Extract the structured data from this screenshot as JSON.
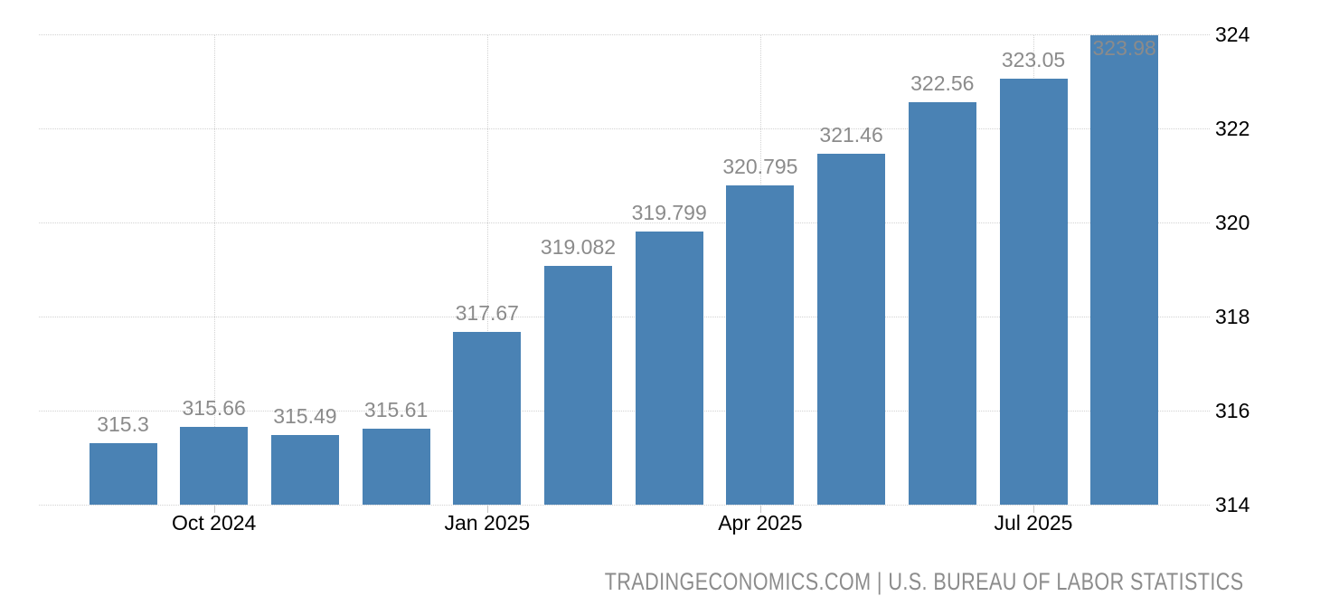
{
  "chart_data": {
    "type": "bar",
    "title": "",
    "xlabel": "",
    "ylabel": "",
    "values": [
      315.3,
      315.66,
      315.49,
      315.61,
      317.67,
      319.082,
      319.799,
      320.795,
      321.46,
      322.56,
      323.05,
      323.98
    ],
    "bar_labels": [
      "315.3",
      "315.66",
      "315.49",
      "315.61",
      "317.67",
      "319.082",
      "319.799",
      "320.795",
      "321.46",
      "322.56",
      "323.05",
      "323.98"
    ],
    "x_ticks": [
      {
        "label": "Oct 2024",
        "bar_index": 1
      },
      {
        "label": "Jan 2025",
        "bar_index": 4
      },
      {
        "label": "Apr 2025",
        "bar_index": 7
      },
      {
        "label": "Jul 2025",
        "bar_index": 10
      }
    ],
    "y_ticks": [
      "314",
      "316",
      "318",
      "320",
      "322",
      "324"
    ],
    "ylim": [
      314,
      324
    ],
    "y_axis_side": "right",
    "grid": "dotted",
    "legend": "none",
    "colors": {
      "bar": "#4a82b4",
      "value_label": "#8b8b8b",
      "axis_text": "#000000",
      "gridline": "#d2d2d2",
      "attribution_text": "#8c8c8c"
    }
  },
  "footer": {
    "attribution": "TRADINGECONOMICS.COM | U.S. BUREAU OF LABOR STATISTICS"
  }
}
